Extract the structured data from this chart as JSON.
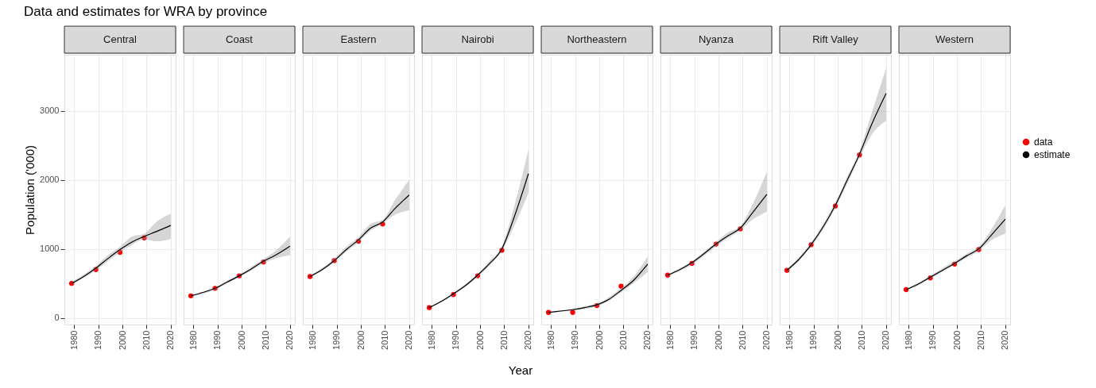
{
  "chart_data": [
    {
      "type": "line",
      "title": "Central",
      "annotations": [
        "Data and estimates for WRA by province"
      ],
      "ylabel": "Population ('000)",
      "xlim": [
        1976,
        2022
      ],
      "ylim": [
        -95,
        3810
      ],
      "xticks": [
        1980,
        1990,
        2000,
        2010,
        2020
      ],
      "yticks": [
        0,
        1000,
        2000,
        3000
      ],
      "grid": true,
      "x": [
        1979,
        1989,
        1999,
        2009
      ],
      "series": [
        {
          "type": "scatter",
          "marker": "circle",
          "color": "#ff0000",
          "values": [
            500,
            700,
            950,
            1160
          ]
        },
        {
          "line_style": "solid",
          "color": "#000000",
          "x": [
            1979,
            1984,
            1989,
            1994,
            1999,
            2004,
            2009,
            2014,
            2020
          ],
          "values": [
            500,
            600,
            720,
            860,
            990,
            1100,
            1180,
            1250,
            1340
          ],
          "lower": [
            480,
            580,
            690,
            820,
            950,
            1060,
            1140,
            1110,
            1140
          ],
          "upper": [
            520,
            630,
            750,
            910,
            1030,
            1180,
            1220,
            1390,
            1510
          ]
        }
      ]
    },
    {
      "type": "line",
      "title": "Coast",
      "xlim": [
        1976,
        2022
      ],
      "ylim": [
        -95,
        3810
      ],
      "xticks": [
        1980,
        1990,
        2000,
        2010,
        2020
      ],
      "yticks": [
        0,
        1000,
        2000,
        3000
      ],
      "grid": true,
      "tick_labels": "x",
      "x": [
        1979,
        1989,
        1999,
        2009
      ],
      "series": [
        {
          "type": "scatter",
          "marker": "circle",
          "color": "#ff0000",
          "values": [
            320,
            430,
            610,
            810
          ]
        },
        {
          "line_style": "solid",
          "color": "#000000",
          "x": [
            1979,
            1984,
            1989,
            1994,
            1999,
            2004,
            2009,
            2014,
            2020
          ],
          "values": [
            320,
            370,
            430,
            520,
            610,
            710,
            820,
            910,
            1040
          ],
          "lower": [
            310,
            350,
            410,
            500,
            590,
            690,
            790,
            860,
            910
          ],
          "upper": [
            330,
            380,
            440,
            540,
            630,
            740,
            850,
            970,
            1180
          ]
        }
      ]
    },
    {
      "type": "line",
      "title": "Eastern",
      "xlim": [
        1976,
        2022
      ],
      "ylim": [
        -95,
        3810
      ],
      "xticks": [
        1980,
        1990,
        2000,
        2010,
        2020
      ],
      "yticks": [
        0,
        1000,
        2000,
        3000
      ],
      "grid": true,
      "tick_labels": "x",
      "x": [
        1979,
        1989,
        1999,
        2009
      ],
      "series": [
        {
          "type": "scatter",
          "marker": "circle",
          "color": "#ff0000",
          "values": [
            600,
            830,
            1110,
            1360
          ]
        },
        {
          "line_style": "solid",
          "color": "#000000",
          "x": [
            1979,
            1984,
            1989,
            1994,
            1999,
            2004,
            2009,
            2014,
            2020
          ],
          "values": [
            600,
            700,
            830,
            990,
            1130,
            1300,
            1390,
            1580,
            1780
          ],
          "lower": [
            590,
            680,
            810,
            960,
            1100,
            1260,
            1370,
            1490,
            1560
          ],
          "upper": [
            620,
            720,
            860,
            1030,
            1170,
            1360,
            1420,
            1700,
            2000
          ]
        }
      ]
    },
    {
      "type": "line",
      "title": "Nairobi",
      "xlabel": "Year",
      "xlim": [
        1976,
        2022
      ],
      "ylim": [
        -95,
        3810
      ],
      "xticks": [
        1980,
        1990,
        2000,
        2010,
        2020
      ],
      "yticks": [
        0,
        1000,
        2000,
        3000
      ],
      "grid": true,
      "tick_labels": "x",
      "x": [
        1979,
        1989,
        1999,
        2009
      ],
      "series": [
        {
          "type": "scatter",
          "marker": "circle",
          "color": "#ff0000",
          "values": [
            150,
            340,
            610,
            980
          ]
        },
        {
          "line_style": "solid",
          "color": "#000000",
          "x": [
            1979,
            1984,
            1989,
            1994,
            1999,
            2004,
            2009,
            2014,
            2020
          ],
          "values": [
            150,
            240,
            350,
            470,
            620,
            790,
            1000,
            1450,
            2090
          ],
          "lower": [
            140,
            230,
            330,
            450,
            590,
            760,
            970,
            1320,
            1810
          ],
          "upper": [
            160,
            250,
            360,
            490,
            640,
            830,
            1040,
            1600,
            2440
          ]
        }
      ]
    },
    {
      "type": "line",
      "title": "Northeastern",
      "xlim": [
        1976,
        2022
      ],
      "ylim": [
        -95,
        3810
      ],
      "xticks": [
        1980,
        1990,
        2000,
        2010,
        2020
      ],
      "yticks": [
        0,
        1000,
        2000,
        3000
      ],
      "grid": true,
      "tick_labels": "x",
      "x": [
        1979,
        1989,
        1999,
        2009
      ],
      "series": [
        {
          "type": "scatter",
          "marker": "circle",
          "color": "#ff0000",
          "values": [
            80,
            80,
            180,
            460
          ]
        },
        {
          "line_style": "solid",
          "color": "#000000",
          "x": [
            1979,
            1984,
            1989,
            1994,
            1999,
            2004,
            2009,
            2014,
            2020
          ],
          "values": [
            80,
            100,
            120,
            150,
            190,
            270,
            400,
            540,
            780
          ],
          "lower": [
            70,
            90,
            110,
            130,
            170,
            250,
            370,
            500,
            660
          ],
          "upper": [
            90,
            110,
            130,
            170,
            210,
            300,
            430,
            590,
            890
          ]
        }
      ]
    },
    {
      "type": "line",
      "title": "Nyanza",
      "xlim": [
        1976,
        2022
      ],
      "ylim": [
        -95,
        3810
      ],
      "xticks": [
        1980,
        1990,
        2000,
        2010,
        2020
      ],
      "yticks": [
        0,
        1000,
        2000,
        3000
      ],
      "grid": true,
      "tick_labels": "x",
      "x": [
        1979,
        1989,
        1999,
        2009
      ],
      "series": [
        {
          "type": "scatter",
          "marker": "circle",
          "color": "#ff0000",
          "values": [
            620,
            790,
            1070,
            1290
          ]
        },
        {
          "line_style": "solid",
          "color": "#000000",
          "x": [
            1979,
            1984,
            1989,
            1994,
            1999,
            2004,
            2009,
            2014,
            2020
          ],
          "values": [
            620,
            700,
            800,
            930,
            1070,
            1190,
            1300,
            1520,
            1790
          ],
          "lower": [
            600,
            680,
            770,
            900,
            1040,
            1160,
            1270,
            1420,
            1540
          ],
          "upper": [
            630,
            720,
            820,
            960,
            1100,
            1240,
            1330,
            1640,
            2120
          ]
        }
      ]
    },
    {
      "type": "line",
      "title": "Rift Valley",
      "xlim": [
        1976,
        2022
      ],
      "ylim": [
        -95,
        3810
      ],
      "xticks": [
        1980,
        1990,
        2000,
        2010,
        2020
      ],
      "yticks": [
        0,
        1000,
        2000,
        3000
      ],
      "grid": true,
      "tick_labels": "x",
      "x": [
        1979,
        1989,
        1999,
        2009
      ],
      "series": [
        {
          "type": "scatter",
          "marker": "circle",
          "color": "#ff0000",
          "values": [
            690,
            1060,
            1620,
            2360
          ]
        },
        {
          "line_style": "solid",
          "color": "#000000",
          "x": [
            1979,
            1984,
            1989,
            1994,
            1999,
            2004,
            2009,
            2014,
            2020
          ],
          "values": [
            690,
            850,
            1060,
            1320,
            1630,
            2000,
            2370,
            2800,
            3250
          ],
          "lower": [
            670,
            830,
            1030,
            1280,
            1590,
            1950,
            2320,
            2650,
            2850
          ],
          "upper": [
            710,
            880,
            1090,
            1360,
            1670,
            2050,
            2420,
            2960,
            3620
          ]
        }
      ]
    },
    {
      "type": "line",
      "title": "Western",
      "xlim": [
        1976,
        2022
      ],
      "ylim": [
        -95,
        3810
      ],
      "xticks": [
        1980,
        1990,
        2000,
        2010,
        2020
      ],
      "yticks": [
        0,
        1000,
        2000,
        3000
      ],
      "grid": true,
      "legend": "right",
      "tick_labels": "x",
      "x": [
        1979,
        1989,
        1999,
        2009
      ],
      "series": [
        {
          "name": "data",
          "type": "scatter",
          "marker": "circle",
          "color": "#ff0000",
          "values": [
            410,
            580,
            780,
            990
          ]
        },
        {
          "name": "estimate",
          "line_style": "solid",
          "color": "#000000",
          "x": [
            1979,
            1984,
            1989,
            1994,
            1999,
            2004,
            2009,
            2014,
            2020
          ],
          "values": [
            410,
            490,
            590,
            690,
            790,
            900,
            1000,
            1190,
            1430
          ],
          "lower": [
            400,
            470,
            570,
            670,
            770,
            870,
            970,
            1120,
            1220
          ],
          "upper": [
            420,
            510,
            610,
            720,
            820,
            930,
            1030,
            1270,
            1630
          ]
        }
      ]
    }
  ]
}
